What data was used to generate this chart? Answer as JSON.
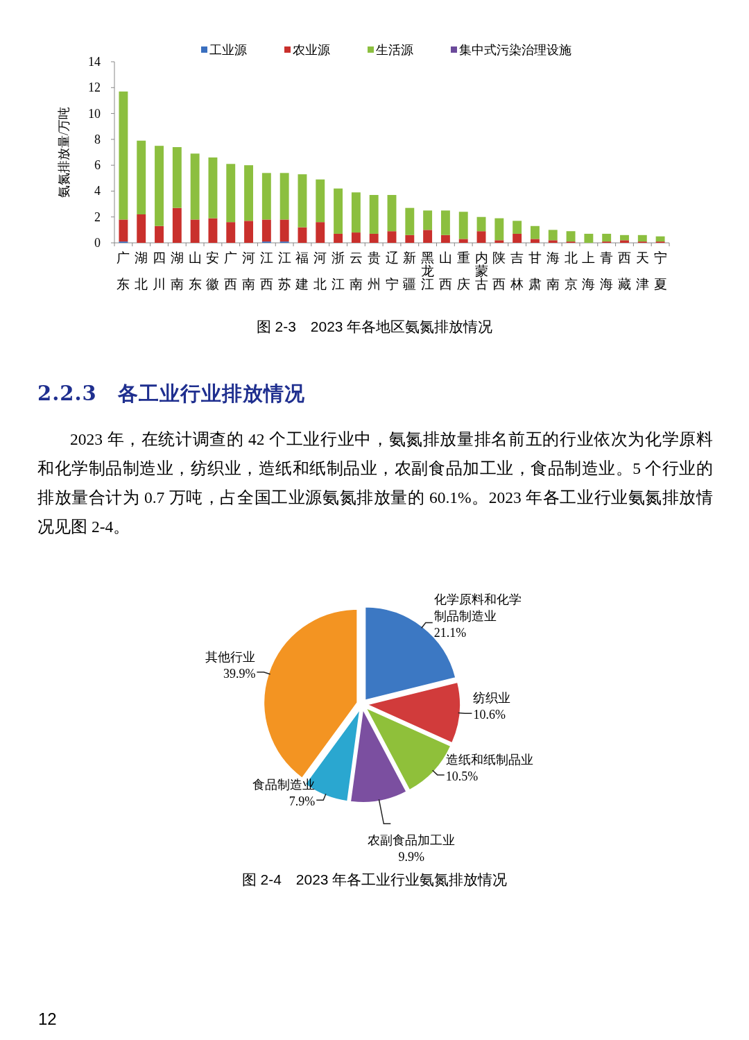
{
  "chart_data": [
    {
      "type": "bar",
      "title": "图 2-3　2023 年各地区氨氮排放情况",
      "ylabel": "氨氮排放量/万吨",
      "stacked": true,
      "legend": "top",
      "ylim": [
        0,
        14
      ],
      "yticks": [
        0,
        2,
        4,
        6,
        8,
        10,
        12,
        14
      ],
      "categories": [
        "广东",
        "湖北",
        "四川",
        "湖南",
        "山东",
        "安徽",
        "广西",
        "河南",
        "江西",
        "江苏",
        "福建",
        "河北",
        "浙江",
        "云南",
        "贵州",
        "辽宁",
        "新疆",
        "黑龙江",
        "山西",
        "重庆",
        "内蒙古",
        "陕西",
        "吉林",
        "甘肃",
        "海南",
        "北京",
        "上海",
        "青海",
        "西藏",
        "天津",
        "宁夏"
      ],
      "series": [
        {
          "name": "工业源",
          "color": "#3a6fbf",
          "values": [
            0.1,
            0,
            0,
            0,
            0,
            0,
            0,
            0,
            0.1,
            0.1,
            0,
            0,
            0,
            0,
            0,
            0,
            0,
            0,
            0,
            0,
            0,
            0,
            0,
            0,
            0,
            0,
            0,
            0,
            0,
            0,
            0
          ]
        },
        {
          "name": "农业源",
          "color": "#c9302c",
          "values": [
            1.7,
            2.2,
            1.3,
            2.7,
            1.8,
            1.9,
            1.6,
            1.7,
            1.7,
            1.7,
            1.2,
            1.6,
            0.7,
            0.8,
            0.7,
            0.9,
            0.6,
            1.0,
            0.6,
            0.3,
            0.9,
            0.2,
            0.7,
            0.3,
            0.2,
            0.1,
            0.0,
            0.1,
            0.2,
            0.1,
            0.1
          ]
        },
        {
          "name": "生活源",
          "color": "#8cbf3f",
          "values": [
            9.9,
            5.7,
            6.2,
            4.7,
            5.1,
            4.7,
            4.5,
            4.3,
            3.6,
            3.6,
            4.1,
            3.3,
            3.5,
            3.1,
            3.0,
            2.8,
            2.1,
            1.5,
            1.9,
            2.1,
            1.1,
            1.7,
            1.0,
            1.0,
            0.8,
            0.8,
            0.7,
            0.6,
            0.4,
            0.5,
            0.4
          ]
        },
        {
          "name": "集中式污染治理设施",
          "color": "#6b4a9b",
          "values": [
            0,
            0,
            0,
            0,
            0,
            0,
            0,
            0,
            0,
            0,
            0,
            0,
            0,
            0,
            0,
            0,
            0,
            0,
            0,
            0,
            0,
            0,
            0,
            0,
            0,
            0,
            0,
            0,
            0,
            0,
            0
          ]
        }
      ]
    },
    {
      "type": "other",
      "title": "2.2.3　各工业行业排放情况",
      "annotations": [
        "2023 年，在统计调查的 42 个工业行业中，氨氮排放量排名前五的行业依次为化学原料和化学制品制造业，纺织业，造纸和纸制品业，农副食品加工业，食品制造业。5 个行业的排放量合计为 0.7 万吨，占全国工业源氨氮排放量的 60.1%。2023 年各工业行业氨氮排放情况见图 2-4。",
        "12"
      ]
    },
    {
      "type": "pie",
      "title": "图 2-4　2023 年各工业行业氨氮排放情况",
      "categories": [
        "化学原料和化学制品制造业",
        "纺织业",
        "造纸和纸制品业",
        "农副食品加工业",
        "食品制造业",
        "其他行业"
      ],
      "values": [
        21.1,
        10.6,
        10.5,
        9.9,
        7.9,
        39.9
      ],
      "value_labels": [
        "21.1%",
        "10.6%",
        "10.5%",
        "9.9%",
        "7.9%",
        "39.9%"
      ],
      "colors": [
        "#3c78c3",
        "#d13b3b",
        "#8fc03a",
        "#7b4fa0",
        "#2aa7d0",
        "#f39422"
      ]
    }
  ]
}
